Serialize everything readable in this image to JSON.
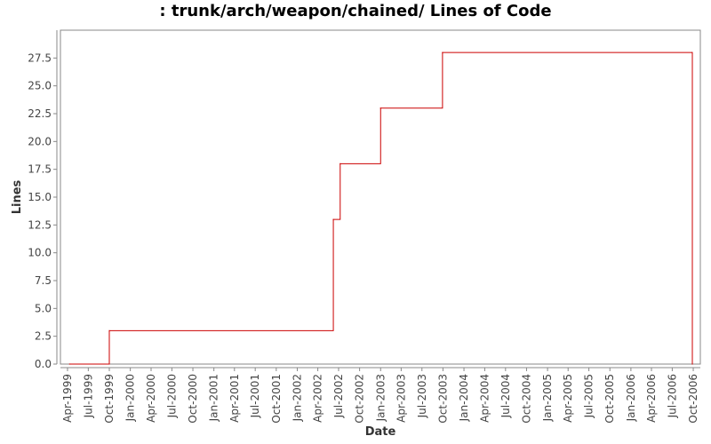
{
  "chart_data": {
    "type": "line",
    "step": true,
    "title": ": trunk/arch/weapon/chained/ Lines of Code",
    "xlabel": "Date",
    "ylabel": "Lines",
    "xlim": [
      "1999-03-01",
      "2006-11-01"
    ],
    "ylim": [
      0,
      30
    ],
    "grid": false,
    "legend": "none",
    "y_ticks": [
      0.0,
      2.5,
      5.0,
      7.5,
      10.0,
      12.5,
      15.0,
      17.5,
      20.0,
      22.5,
      25.0,
      27.5
    ],
    "y_tick_labels": [
      "0.0",
      "2.5",
      "5.0",
      "7.5",
      "10.0",
      "12.5",
      "15.0",
      "17.5",
      "20.0",
      "22.5",
      "25.0",
      "27.5"
    ],
    "x_ticks": [
      "1999-04-01",
      "1999-07-01",
      "1999-10-01",
      "2000-01-01",
      "2000-04-01",
      "2000-07-01",
      "2000-10-01",
      "2001-01-01",
      "2001-04-01",
      "2001-07-01",
      "2001-10-01",
      "2002-01-01",
      "2002-04-01",
      "2002-07-01",
      "2002-10-01",
      "2003-01-01",
      "2003-04-01",
      "2003-07-01",
      "2003-10-01",
      "2004-01-01",
      "2004-04-01",
      "2004-07-01",
      "2004-10-01",
      "2005-01-01",
      "2005-04-01",
      "2005-07-01",
      "2005-10-01",
      "2006-01-01",
      "2006-04-01",
      "2006-07-01",
      "2006-10-01"
    ],
    "x_tick_labels": [
      "Apr-1999",
      "Jul-1999",
      "Oct-1999",
      "Jan-2000",
      "Apr-2000",
      "Jul-2000",
      "Oct-2000",
      "Jan-2001",
      "Apr-2001",
      "Jul-2001",
      "Oct-2001",
      "Jan-2002",
      "Apr-2002",
      "Jul-2002",
      "Oct-2002",
      "Jan-2003",
      "Apr-2003",
      "Jul-2003",
      "Oct-2003",
      "Jan-2004",
      "Apr-2004",
      "Jul-2004",
      "Oct-2004",
      "Jan-2005",
      "Apr-2005",
      "Jul-2005",
      "Oct-2005",
      "Jan-2006",
      "Apr-2006",
      "Jul-2006",
      "Oct-2006"
    ],
    "series": [
      {
        "color": "#cc0000",
        "x": [
          "1999-04-10",
          "1999-10-01",
          "2002-06-08",
          "2002-07-08",
          "2003-01-01",
          "2003-09-29",
          "2006-09-26",
          "2006-09-27"
        ],
        "y": [
          0,
          3,
          13,
          18,
          23,
          28,
          28,
          0
        ]
      }
    ]
  }
}
